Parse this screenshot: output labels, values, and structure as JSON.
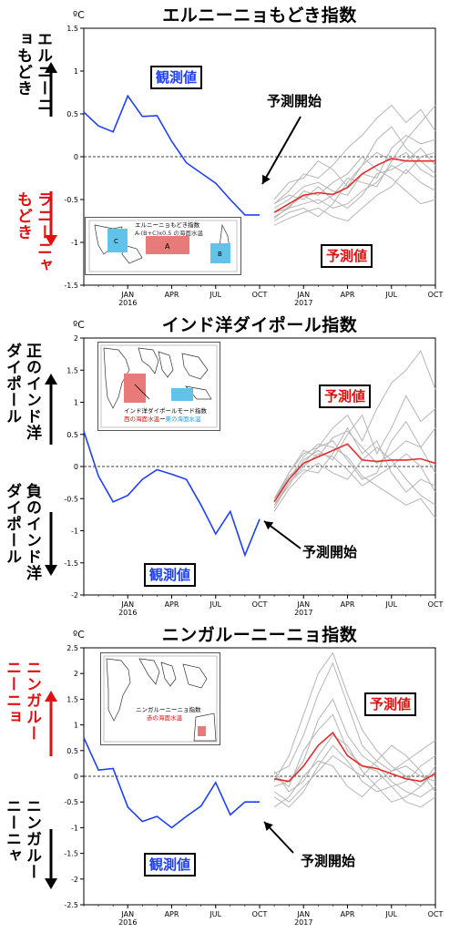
{
  "unit": "ºC",
  "colors": {
    "observed": "#1f3fff",
    "forecast_mean": "#e62b2b",
    "member": "#b5b5b5",
    "warm_box": "#e87a7a",
    "cool_box": "#63c2ea",
    "warm_text": "#e01010"
  },
  "chart_data": [
    {
      "id": "elnino",
      "type": "line",
      "title": "エルニーニョもどき指数",
      "ylim": [
        -1.5,
        1.5
      ],
      "yticks": [
        -1.5,
        -1,
        -0.5,
        0,
        0.5,
        1,
        1.5
      ],
      "ytick_labels": [
        "-1.5",
        "-1",
        "-0.5",
        "0",
        "0.5",
        "1",
        "1.5"
      ],
      "xaxis": {
        "start": "2015-10",
        "end": "2017-10",
        "ticks": [
          {
            "label": "JAN",
            "year": "2016",
            "month": "2016-01"
          },
          {
            "label": "APR",
            "year": "",
            "month": "2016-04"
          },
          {
            "label": "JUL",
            "year": "",
            "month": "2016-07"
          },
          {
            "label": "OCT",
            "year": "",
            "month": "2016-10"
          },
          {
            "label": "JAN",
            "year": "2017",
            "month": "2017-01"
          },
          {
            "label": "APR",
            "year": "",
            "month": "2017-04"
          },
          {
            "label": "JUL",
            "year": "",
            "month": "2017-07"
          },
          {
            "label": "OCT",
            "year": "",
            "month": "2017-10"
          }
        ]
      },
      "observed": {
        "months": [
          "2015-10",
          "2015-11",
          "2015-12",
          "2016-01",
          "2016-02",
          "2016-03",
          "2016-04",
          "2016-05",
          "2016-06",
          "2016-07",
          "2016-08",
          "2016-09",
          "2016-10"
        ],
        "values": [
          0.52,
          0.36,
          0.29,
          0.71,
          0.47,
          0.48,
          0.18,
          -0.07,
          -0.19,
          -0.31,
          -0.5,
          -0.68,
          -0.68
        ]
      },
      "forecast_months": [
        "2016-11",
        "2016-12",
        "2017-01",
        "2017-02",
        "2017-03",
        "2017-04",
        "2017-05",
        "2017-06",
        "2017-07",
        "2017-08",
        "2017-09",
        "2017-10"
      ],
      "forecast_mean": [
        -0.65,
        -0.55,
        -0.45,
        -0.42,
        -0.44,
        -0.36,
        -0.2,
        -0.1,
        -0.02,
        -0.05,
        -0.05,
        -0.05
      ],
      "members": [
        [
          -0.55,
          -0.4,
          -0.2,
          -0.25,
          -0.1,
          0.1,
          0.25,
          0.45,
          0.6,
          0.4,
          0.55,
          0.3
        ],
        [
          -0.7,
          -0.6,
          -0.55,
          -0.5,
          -0.6,
          -0.55,
          -0.4,
          -0.3,
          -0.1,
          -0.2,
          0.0,
          0.05
        ],
        [
          -0.75,
          -0.65,
          -0.6,
          -0.7,
          -0.55,
          -0.3,
          -0.1,
          0.2,
          0.35,
          0.1,
          -0.05,
          -0.2
        ],
        [
          -0.6,
          -0.5,
          -0.35,
          -0.3,
          -0.4,
          -0.45,
          -0.2,
          -0.25,
          0.1,
          0.25,
          0.15,
          0.2
        ],
        [
          -0.8,
          -0.72,
          -0.65,
          -0.6,
          -0.7,
          -0.75,
          -0.6,
          -0.45,
          -0.35,
          -0.15,
          -0.3,
          -0.4
        ],
        [
          -0.5,
          -0.3,
          -0.25,
          -0.05,
          -0.15,
          -0.35,
          -0.1,
          0.05,
          -0.05,
          0.2,
          0.4,
          0.6
        ],
        [
          -0.65,
          -0.6,
          -0.4,
          -0.45,
          -0.3,
          -0.2,
          0.0,
          -0.15,
          -0.25,
          -0.4,
          -0.55,
          -0.5
        ],
        [
          -0.55,
          -0.45,
          -0.5,
          -0.35,
          -0.5,
          -0.6,
          -0.45,
          -0.2,
          -0.15,
          -0.05,
          0.1,
          -0.1
        ],
        [
          -0.72,
          -0.58,
          -0.45,
          -0.55,
          -0.45,
          -0.25,
          -0.3,
          -0.35,
          -0.05,
          0.05,
          -0.15,
          -0.25
        ]
      ],
      "left_upper": "エルニーニョもどき",
      "left_lower": "ラニーニャもどき",
      "left_upper_color": "#000000",
      "left_lower_color": "#e01010",
      "observed_label": "観測値",
      "forecast_label": "予測値",
      "start_label": "予測開始",
      "inset": {
        "title": "エルニーニョもどき指数",
        "formula": "A-(B+C)x0.5 の海面水温",
        "box_labels": [
          "A",
          "B",
          "C"
        ]
      }
    },
    {
      "id": "iod",
      "type": "line",
      "title": "インド洋ダイポール指数",
      "ylim": [
        -2,
        2
      ],
      "yticks": [
        -2,
        -1.5,
        -1,
        -0.5,
        0,
        0.5,
        1,
        1.5,
        2
      ],
      "ytick_labels": [
        "-2",
        "-1.5",
        "-1",
        "-0.5",
        "0",
        "0.5",
        "1",
        "1.5",
        "2"
      ],
      "xaxis": {
        "start": "2015-10",
        "end": "2017-10",
        "ticks": [
          {
            "label": "JAN",
            "year": "2016",
            "month": "2016-01"
          },
          {
            "label": "APR",
            "year": "",
            "month": "2016-04"
          },
          {
            "label": "JUL",
            "year": "",
            "month": "2016-07"
          },
          {
            "label": "OCT",
            "year": "",
            "month": "2016-10"
          },
          {
            "label": "JAN",
            "year": "2017",
            "month": "2017-01"
          },
          {
            "label": "APR",
            "year": "",
            "month": "2017-04"
          },
          {
            "label": "JUL",
            "year": "",
            "month": "2017-07"
          },
          {
            "label": "OCT",
            "year": "",
            "month": "2017-10"
          }
        ]
      },
      "observed": {
        "months": [
          "2015-10",
          "2015-11",
          "2015-12",
          "2016-01",
          "2016-02",
          "2016-03",
          "2016-04",
          "2016-05",
          "2016-06",
          "2016-07",
          "2016-08",
          "2016-09",
          "2016-10"
        ],
        "values": [
          0.55,
          -0.15,
          -0.55,
          -0.45,
          -0.2,
          -0.05,
          -0.12,
          -0.2,
          -0.6,
          -1.05,
          -0.7,
          -1.38,
          -0.82
        ]
      },
      "forecast_months": [
        "2016-11",
        "2016-12",
        "2017-01",
        "2017-02",
        "2017-03",
        "2017-04",
        "2017-05",
        "2017-06",
        "2017-07",
        "2017-08",
        "2017-09",
        "2017-10"
      ],
      "forecast_mean": [
        -0.55,
        -0.2,
        0.05,
        0.15,
        0.25,
        0.35,
        0.1,
        0.08,
        0.1,
        0.1,
        0.12,
        0.05
      ],
      "members": [
        [
          -0.5,
          -0.1,
          0.2,
          0.3,
          0.6,
          0.8,
          0.4,
          0.9,
          1.3,
          1.5,
          1.8,
          1.2
        ],
        [
          -0.6,
          -0.3,
          0.1,
          0.25,
          0.1,
          0.5,
          0.8,
          0.2,
          0.6,
          1.1,
          0.7,
          0.9
        ],
        [
          -0.55,
          -0.15,
          0.05,
          0.3,
          0.4,
          0.1,
          -0.2,
          -0.1,
          0.4,
          0.7,
          0.3,
          -0.1
        ],
        [
          -0.65,
          -0.25,
          -0.05,
          -0.1,
          0.2,
          0.6,
          0.2,
          0.4,
          -0.1,
          -0.4,
          -0.2,
          -0.3
        ],
        [
          -0.5,
          -0.2,
          0.15,
          0.35,
          0.3,
          0.15,
          -0.15,
          -0.3,
          -0.45,
          -0.6,
          -0.5,
          -0.8
        ],
        [
          -0.7,
          -0.35,
          -0.1,
          0.05,
          -0.1,
          -0.2,
          0.1,
          0.3,
          0.1,
          -0.2,
          -0.45,
          -0.6
        ],
        [
          -0.55,
          -0.1,
          0.25,
          0.15,
          0.45,
          0.55,
          0.3,
          0.05,
          0.2,
          0.4,
          0.3,
          0.6
        ],
        [
          -0.6,
          -0.25,
          0.0,
          0.2,
          0.15,
          -0.05,
          -0.3,
          -0.15,
          0.0,
          0.2,
          0.0,
          -0.4
        ]
      ],
      "left_upper": "正のインド洋ダイポール",
      "left_lower": "負のインド洋ダイポール",
      "left_upper_color": "#000000",
      "left_lower_color": "#000000",
      "observed_label": "観測値",
      "forecast_label": "予測値",
      "start_label": "予測開始",
      "inset": {
        "title": "インド洋ダイポールモード指数",
        "formula_red": "西の海面水温",
        "formula_mid": "ー",
        "formula_blue": "東の海面水温"
      }
    },
    {
      "id": "ningaloo",
      "type": "line",
      "title": "ニンガルーニーニョ指数",
      "ylim": [
        -2.5,
        2.5
      ],
      "yticks": [
        -2.5,
        -2,
        -1.5,
        -1,
        -0.5,
        0,
        0.5,
        1,
        1.5,
        2,
        2.5
      ],
      "ytick_labels": [
        "-2.5",
        "-2",
        "-1.5",
        "-1",
        "-0.5",
        "0",
        "0.5",
        "1",
        "1.5",
        "2",
        "2.5"
      ],
      "xaxis": {
        "start": "2015-10",
        "end": "2017-10",
        "ticks": [
          {
            "label": "JAN",
            "year": "2016",
            "month": "2016-01"
          },
          {
            "label": "APR",
            "year": "",
            "month": "2016-04"
          },
          {
            "label": "JUL",
            "year": "",
            "month": "2016-07"
          },
          {
            "label": "OCT",
            "year": "",
            "month": "2016-10"
          },
          {
            "label": "JAN",
            "year": "2017",
            "month": "2017-01"
          },
          {
            "label": "APR",
            "year": "",
            "month": "2017-04"
          },
          {
            "label": "JUL",
            "year": "",
            "month": "2017-07"
          },
          {
            "label": "OCT",
            "year": "",
            "month": "2017-10"
          }
        ]
      },
      "observed": {
        "months": [
          "2015-10",
          "2015-11",
          "2015-12",
          "2016-01",
          "2016-02",
          "2016-03",
          "2016-04",
          "2016-05",
          "2016-06",
          "2016-07",
          "2016-08",
          "2016-09",
          "2016-10"
        ],
        "values": [
          0.75,
          0.12,
          0.15,
          -0.6,
          -0.88,
          -0.78,
          -1.0,
          -0.78,
          -0.58,
          -0.12,
          -0.75,
          -0.5,
          -0.5
        ]
      },
      "forecast_months": [
        "2016-11",
        "2016-12",
        "2017-01",
        "2017-02",
        "2017-03",
        "2017-04",
        "2017-05",
        "2017-06",
        "2017-07",
        "2017-08",
        "2017-09",
        "2017-10"
      ],
      "forecast_mean": [
        -0.05,
        -0.1,
        0.2,
        0.6,
        0.85,
        0.4,
        0.2,
        0.15,
        0.05,
        -0.05,
        -0.1,
        0.05
      ],
      "members": [
        [
          -0.1,
          0.4,
          1.2,
          2.0,
          2.4,
          1.6,
          0.9,
          0.5,
          0.2,
          0.0,
          -0.2,
          0.1
        ],
        [
          0.05,
          0.2,
          0.8,
          1.6,
          2.2,
          1.4,
          0.6,
          0.3,
          0.1,
          0.2,
          0.0,
          -0.1
        ],
        [
          -0.2,
          -0.1,
          0.3,
          1.1,
          1.5,
          0.8,
          0.4,
          0.2,
          -0.1,
          -0.3,
          -0.4,
          -0.2
        ],
        [
          0.1,
          -0.3,
          -0.1,
          0.4,
          0.8,
          0.6,
          0.1,
          -0.2,
          -0.5,
          -0.4,
          -0.2,
          0.2
        ],
        [
          -0.3,
          -0.5,
          -0.2,
          0.1,
          0.4,
          0.2,
          0.0,
          0.3,
          0.6,
          0.4,
          0.1,
          -0.3
        ],
        [
          -0.6,
          -0.4,
          0.0,
          0.3,
          0.2,
          -0.2,
          -0.4,
          -0.1,
          0.1,
          0.3,
          0.5,
          0.7
        ],
        [
          0.0,
          -0.2,
          0.5,
          0.9,
          1.2,
          0.5,
          0.2,
          0.1,
          -0.2,
          -0.1,
          0.2,
          0.4
        ],
        [
          -0.4,
          -0.6,
          -0.3,
          0.2,
          0.6,
          0.3,
          -0.1,
          -0.3,
          -0.2,
          -0.5,
          -0.6,
          -0.4
        ]
      ],
      "left_upper": "ニンガルーニーニョ",
      "left_lower": "ニンガルーニーニャ",
      "left_upper_color": "#e01010",
      "left_lower_color": "#000000",
      "observed_label": "観測値",
      "forecast_label": "予測値",
      "start_label": "予測開始",
      "inset": {
        "title": "ニンガルーニーニョ指数",
        "formula_red": "赤の海面水温"
      }
    }
  ]
}
